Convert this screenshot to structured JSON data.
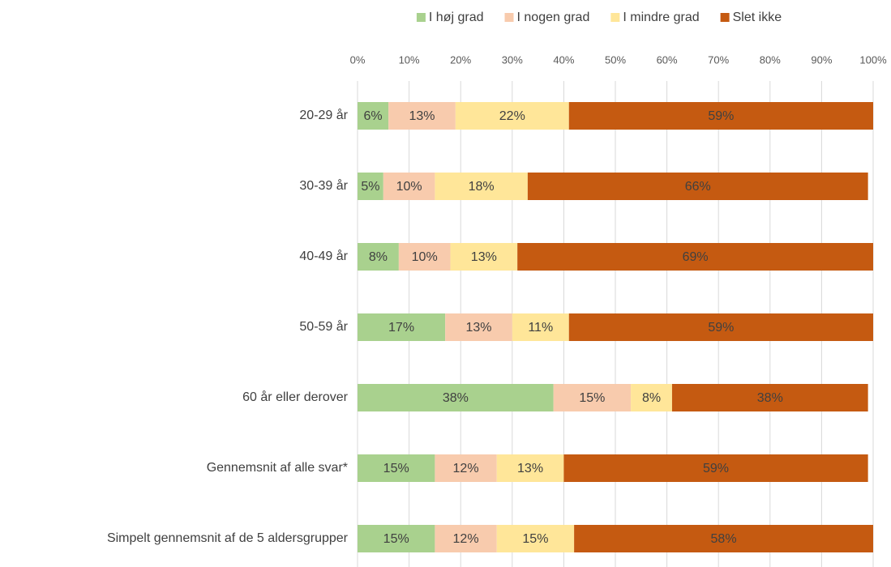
{
  "chart_data": {
    "type": "stacked_bar_horizontal",
    "categories": [
      "20-29 år",
      "30-39 år",
      "40-49 år",
      "50-59 år",
      "60 år eller derover",
      "Gennemsnit af alle svar*",
      "Simpelt gennemsnit af de 5 aldersgrupper"
    ],
    "series": [
      {
        "name": "I høj grad",
        "color": "#a9d18e",
        "values": [
          6,
          5,
          8,
          17,
          38,
          15,
          15
        ],
        "value_labels": [
          "6%",
          "5%",
          "8%",
          "17%",
          "38%",
          "15%",
          "15%"
        ]
      },
      {
        "name": "I nogen grad",
        "color": "#f8cbad",
        "values": [
          13,
          10,
          10,
          13,
          15,
          12,
          12
        ],
        "value_labels": [
          "13%",
          "10%",
          "10%",
          "13%",
          "15%",
          "12%",
          "12%"
        ]
      },
      {
        "name": "I mindre grad",
        "color": "#ffe699",
        "values": [
          22,
          18,
          13,
          11,
          8,
          13,
          15
        ],
        "value_labels": [
          "22%",
          "18%",
          "13%",
          "11%",
          "8%",
          "13%",
          "15%"
        ]
      },
      {
        "name": "Slet ikke",
        "color": "#c55a11",
        "values": [
          59,
          66,
          69,
          59,
          38,
          59,
          58
        ],
        "value_labels": [
          "59%",
          "66%",
          "69%",
          "59%",
          "38%",
          "59%",
          "58%"
        ]
      }
    ],
    "xlim": [
      0,
      100
    ],
    "xticks": [
      {
        "value": 0,
        "label": "0%"
      },
      {
        "value": 10,
        "label": "10%"
      },
      {
        "value": 20,
        "label": "20%"
      },
      {
        "value": 30,
        "label": "30%"
      },
      {
        "value": 40,
        "label": "40%"
      },
      {
        "value": 50,
        "label": "50%"
      },
      {
        "value": 60,
        "label": "60%"
      },
      {
        "value": 70,
        "label": "70%"
      },
      {
        "value": 80,
        "label": "80%"
      },
      {
        "value": 90,
        "label": "90%"
      },
      {
        "value": 100,
        "label": "100%"
      }
    ],
    "grid": true,
    "legend": "top"
  }
}
